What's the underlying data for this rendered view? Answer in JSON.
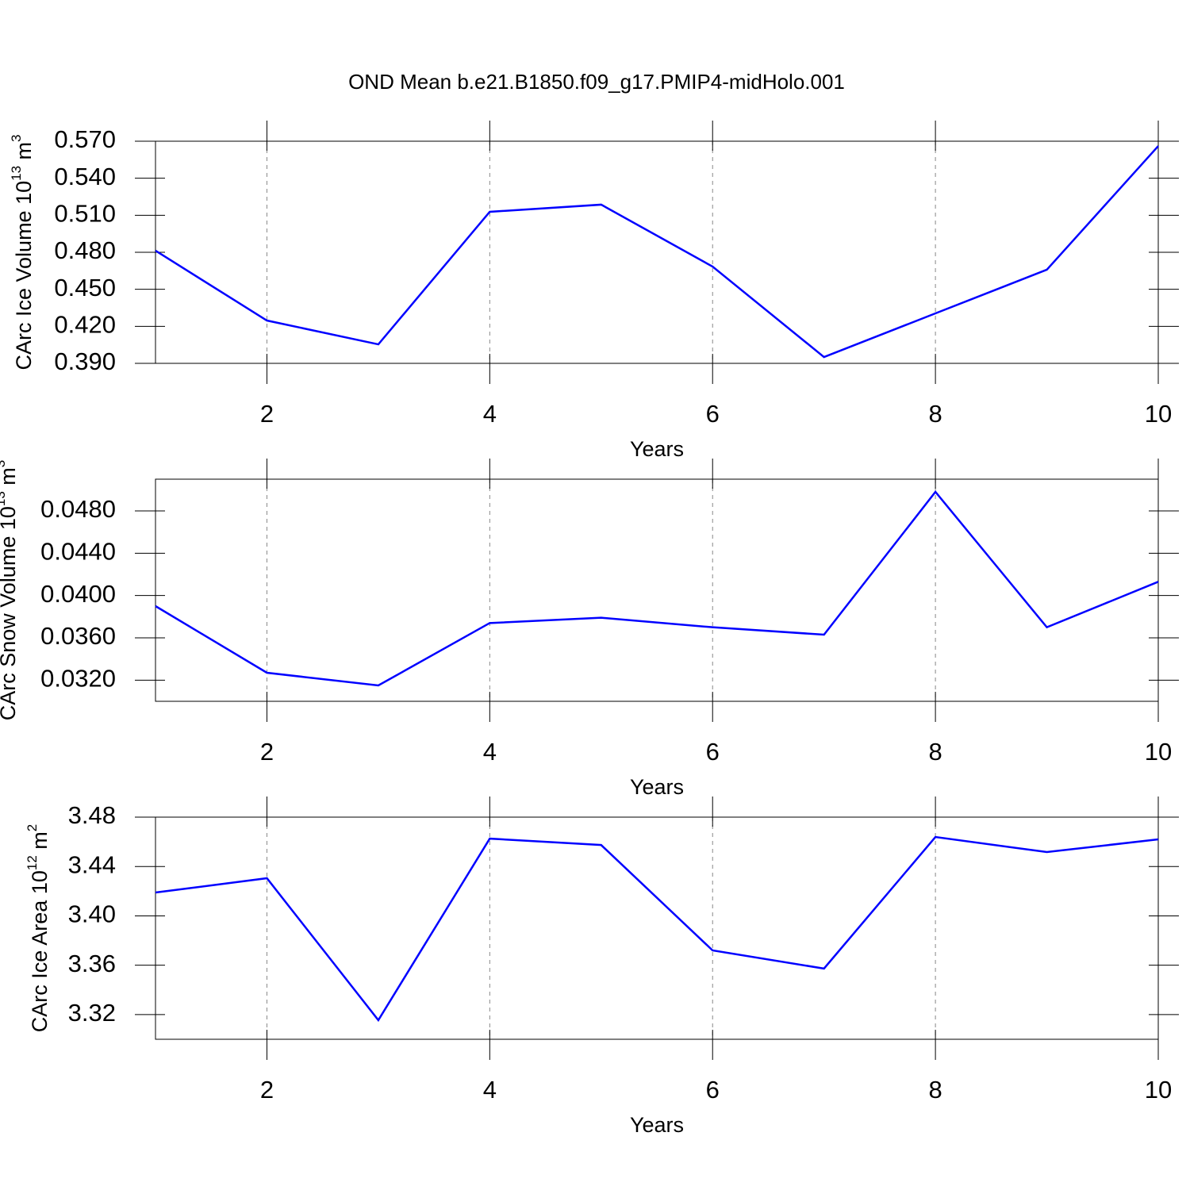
{
  "chart_data": [
    {
      "type": "line",
      "title": "OND Mean b.e21.B1850.f09_g17.PMIP4-midHolo.001",
      "x_label": "Years",
      "y_label_parts": [
        "CArc Ice Volume 10",
        "13",
        " m",
        "3"
      ],
      "x": [
        1,
        2,
        3,
        4,
        5,
        6,
        7,
        8,
        9,
        10
      ],
      "values": [
        0.4813,
        0.4247,
        0.4054,
        0.5128,
        0.5186,
        0.4684,
        0.3951,
        0.4305,
        0.4659,
        0.5661
      ],
      "color": "#0000ff",
      "xlim": [
        1,
        10
      ],
      "xticks": [
        2,
        4,
        6,
        8,
        10
      ],
      "ylim": [
        0.39,
        0.57
      ],
      "yticks": [
        {
          "value": 0.39,
          "label": "0.390"
        },
        {
          "value": 0.42,
          "label": "0.420"
        },
        {
          "value": 0.45,
          "label": "0.450"
        },
        {
          "value": 0.48,
          "label": "0.480"
        },
        {
          "value": 0.51,
          "label": "0.510"
        },
        {
          "value": 0.54,
          "label": "0.540"
        },
        {
          "value": 0.57,
          "label": "0.570"
        }
      ],
      "grid": "x-dashed"
    },
    {
      "type": "line",
      "x_label": "Years",
      "y_label_parts": [
        "CArc Snow Volume 10",
        "13",
        " m",
        "3"
      ],
      "x": [
        1,
        2,
        3,
        4,
        5,
        6,
        7,
        8,
        9,
        10
      ],
      "values": [
        0.039,
        0.0327,
        0.0315,
        0.0374,
        0.0379,
        0.037,
        0.0363,
        0.0498,
        0.037,
        0.0413
      ],
      "color": "#0000ff",
      "xlim": [
        1,
        10
      ],
      "xticks": [
        2,
        4,
        6,
        8,
        10
      ],
      "ylim": [
        0.03,
        0.051
      ],
      "yticks": [
        {
          "value": 0.032,
          "label": "0.0320"
        },
        {
          "value": 0.036,
          "label": "0.0360"
        },
        {
          "value": 0.04,
          "label": "0.0400"
        },
        {
          "value": 0.044,
          "label": "0.0440"
        },
        {
          "value": 0.048,
          "label": "0.0480"
        }
      ],
      "grid": "x-dashed"
    },
    {
      "type": "line",
      "x_label": "Years",
      "y_label_parts": [
        "CArc Ice Area 10",
        "12",
        " m",
        "2"
      ],
      "x": [
        1,
        2,
        3,
        4,
        5,
        6,
        7,
        8,
        9,
        10
      ],
      "values": [
        3.4189,
        3.4305,
        3.3155,
        3.4626,
        3.4574,
        3.372,
        3.3573,
        3.4639,
        3.4517,
        3.462
      ],
      "color": "#0000ff",
      "xlim": [
        1,
        10
      ],
      "xticks": [
        2,
        4,
        6,
        8,
        10
      ],
      "ylim": [
        3.3,
        3.48
      ],
      "yticks": [
        3.32,
        3.36,
        {
          "value": 3.4,
          "label": "3.40"
        },
        3.44,
        3.48
      ],
      "grid": "x-dashed"
    }
  ]
}
